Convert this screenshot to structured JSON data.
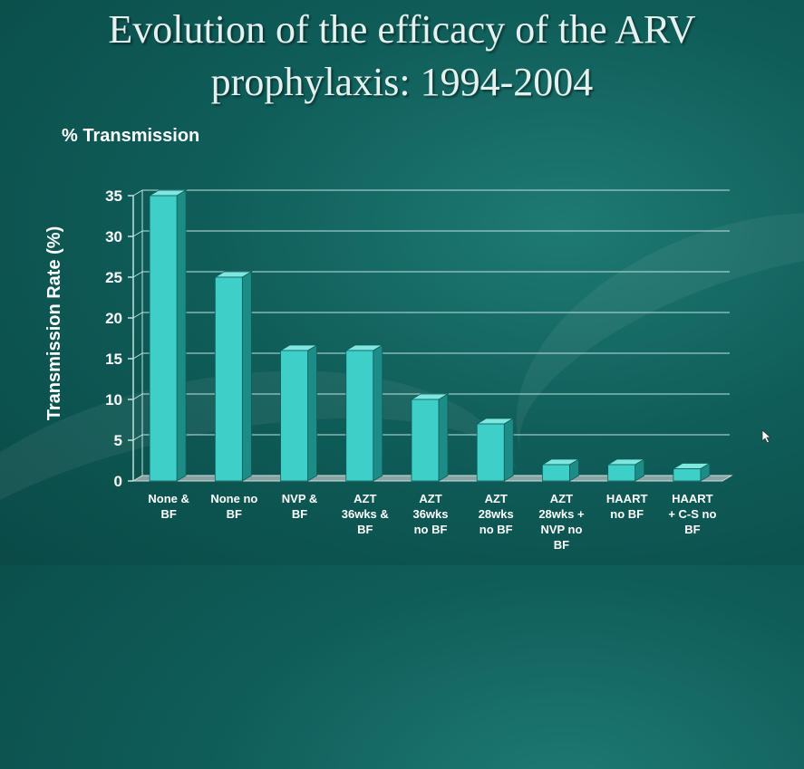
{
  "slide": {
    "title_line1": "Evolution of the efficacy of the ARV",
    "title_line2": "prophylaxis: 1994-2004",
    "subtitle": "% Transmission"
  },
  "colors": {
    "bar_front": "#3ed0c8",
    "bar_side": "#1d8c86",
    "bar_top": "#7fe6e0",
    "grid": "#bfe3df",
    "text": "#ffffff"
  },
  "chart_data": {
    "type": "bar",
    "ylabel": "Transmission Rate (%)",
    "ylim": [
      0,
      35
    ],
    "yticks": [
      0,
      5,
      10,
      15,
      20,
      25,
      30,
      35
    ],
    "grid": true,
    "categories": [
      [
        "None &",
        "BF"
      ],
      [
        "None no",
        "BF"
      ],
      [
        "NVP &",
        "BF"
      ],
      [
        "AZT",
        "36wks &",
        "BF"
      ],
      [
        "AZT",
        "36wks",
        "no BF"
      ],
      [
        "AZT",
        "28wks",
        "no BF"
      ],
      [
        "AZT",
        "28wks +",
        "NVP no",
        "BF"
      ],
      [
        "HAART",
        "no BF"
      ],
      [
        "HAART",
        "+ C-S no",
        "BF"
      ]
    ],
    "values": [
      35,
      25,
      16,
      16,
      10,
      7,
      2,
      2,
      1.5
    ]
  }
}
